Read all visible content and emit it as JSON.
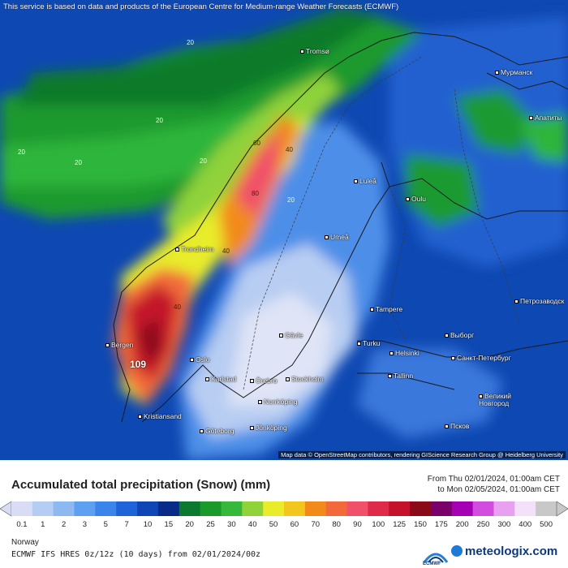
{
  "header": {
    "notice": "This service is based on data and products of the European Centre for Medium-range Weather Forecasts (ECMWF)"
  },
  "map": {
    "credits": "Map data © OpenStreetMap contributors, rendering GIScience Research Group @ Heidelberg University",
    "max_value": "109",
    "cities": [
      {
        "name": "Tromsø"
      },
      {
        "name": "Мурманск"
      },
      {
        "name": "Апатиты"
      },
      {
        "name": "Luleå"
      },
      {
        "name": "Oulu"
      },
      {
        "name": "Umeå"
      },
      {
        "name": "Trondheim"
      },
      {
        "name": "Tampere"
      },
      {
        "name": "Петрозаводск"
      },
      {
        "name": "Bergen"
      },
      {
        "name": "Gävle"
      },
      {
        "name": "Turku"
      },
      {
        "name": "Helsinki"
      },
      {
        "name": "Выборг"
      },
      {
        "name": "Санкт-Петербург"
      },
      {
        "name": "Oslo"
      },
      {
        "name": "Karlstad"
      },
      {
        "name": "Örebro"
      },
      {
        "name": "Stockholm"
      },
      {
        "name": "Tallinn"
      },
      {
        "name": "Norrköping"
      },
      {
        "name": "Великий Новгород"
      },
      {
        "name": "Kristiansand"
      },
      {
        "name": "Jönköping"
      },
      {
        "name": "Göteborg"
      },
      {
        "name": "Псков"
      }
    ],
    "contour_labels": [
      "20",
      "40",
      "60",
      "80"
    ]
  },
  "legend": {
    "title": "Accumulated total precipitation (Snow) (mm)",
    "period_from": "From Thu 02/01/2024, 01:00am CET",
    "period_to": "to Mon 02/05/2024, 01:00am CET",
    "levels": [
      "0.1",
      "1",
      "2",
      "3",
      "5",
      "7",
      "10",
      "15",
      "20",
      "25",
      "30",
      "40",
      "50",
      "60",
      "70",
      "80",
      "90",
      "100",
      "125",
      "150",
      "175",
      "200",
      "250",
      "300",
      "400",
      "500"
    ],
    "colors": [
      "#d8dcf5",
      "#b6cdf3",
      "#8db9f0",
      "#5d9ff0",
      "#3a84ea",
      "#1f63d8",
      "#0f45b4",
      "#0a2a8a",
      "#0b7a2e",
      "#1a9a2a",
      "#36b93a",
      "#8fd23a",
      "#e8ec2a",
      "#f2c61c",
      "#f28a1a",
      "#f26a3a",
      "#f0506a",
      "#e02a4a",
      "#c4122a",
      "#8a0a1a",
      "#7a006a",
      "#a400b4",
      "#d24ce0",
      "#e8a0f0",
      "#f4e0f8",
      "#c8c8c8"
    ],
    "region": "Norway",
    "model": "ECMWF IFS HRES 0z/12z (10 days) from 02/01/2024/00z",
    "brand": "meteologix.com",
    "ecmwf_label": "ECMWF"
  }
}
